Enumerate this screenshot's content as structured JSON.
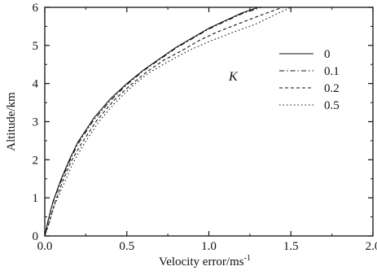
{
  "chart_data": {
    "type": "line",
    "xlabel_main": "Velocity error/ms",
    "xlabel_sup": "-1",
    "ylabel": "Altitude/km",
    "xlim": [
      0,
      2
    ],
    "ylim": [
      0,
      6
    ],
    "xticks": [
      "0.0",
      "0.5",
      "1.0",
      "1.5",
      "2.0"
    ],
    "yticks": [
      "0",
      "1",
      "2",
      "3",
      "4",
      "5",
      "6"
    ],
    "legend_title": "K",
    "legend_placement": "right",
    "grid": false,
    "series": [
      {
        "name": "0",
        "style": "solid",
        "points": [
          [
            0.0,
            0.0
          ],
          [
            0.02,
            0.4
          ],
          [
            0.05,
            0.9
          ],
          [
            0.1,
            1.5
          ],
          [
            0.15,
            2.0
          ],
          [
            0.2,
            2.45
          ],
          [
            0.3,
            3.1
          ],
          [
            0.4,
            3.6
          ],
          [
            0.5,
            4.0
          ],
          [
            0.6,
            4.35
          ],
          [
            0.7,
            4.65
          ],
          [
            0.8,
            4.95
          ],
          [
            0.9,
            5.2
          ],
          [
            1.0,
            5.45
          ],
          [
            1.1,
            5.65
          ],
          [
            1.2,
            5.85
          ],
          [
            1.3,
            6.0
          ]
        ]
      },
      {
        "name": "0.1",
        "style": "dash-dot",
        "points": [
          [
            0.0,
            0.0
          ],
          [
            0.02,
            0.38
          ],
          [
            0.05,
            0.88
          ],
          [
            0.1,
            1.45
          ],
          [
            0.15,
            1.95
          ],
          [
            0.2,
            2.4
          ],
          [
            0.3,
            3.05
          ],
          [
            0.4,
            3.55
          ],
          [
            0.5,
            3.97
          ],
          [
            0.6,
            4.33
          ],
          [
            0.7,
            4.63
          ],
          [
            0.8,
            4.93
          ],
          [
            0.9,
            5.18
          ],
          [
            1.0,
            5.43
          ],
          [
            1.1,
            5.63
          ],
          [
            1.2,
            5.83
          ],
          [
            1.32,
            6.0
          ]
        ]
      },
      {
        "name": "0.2",
        "style": "dashed",
        "points": [
          [
            0.0,
            0.0
          ],
          [
            0.03,
            0.4
          ],
          [
            0.06,
            0.85
          ],
          [
            0.11,
            1.45
          ],
          [
            0.16,
            1.95
          ],
          [
            0.22,
            2.4
          ],
          [
            0.32,
            3.05
          ],
          [
            0.42,
            3.55
          ],
          [
            0.52,
            3.95
          ],
          [
            0.62,
            4.3
          ],
          [
            0.72,
            4.6
          ],
          [
            0.85,
            4.9
          ],
          [
            0.95,
            5.15
          ],
          [
            1.05,
            5.35
          ],
          [
            1.2,
            5.6
          ],
          [
            1.32,
            5.8
          ],
          [
            1.45,
            6.0
          ]
        ]
      },
      {
        "name": "0.5",
        "style": "dotted",
        "points": [
          [
            0.0,
            0.0
          ],
          [
            0.03,
            0.38
          ],
          [
            0.06,
            0.82
          ],
          [
            0.12,
            1.4
          ],
          [
            0.17,
            1.9
          ],
          [
            0.23,
            2.35
          ],
          [
            0.33,
            3.0
          ],
          [
            0.43,
            3.5
          ],
          [
            0.53,
            3.92
          ],
          [
            0.63,
            4.27
          ],
          [
            0.75,
            4.57
          ],
          [
            0.88,
            4.87
          ],
          [
            1.0,
            5.1
          ],
          [
            1.12,
            5.3
          ],
          [
            1.28,
            5.55
          ],
          [
            1.4,
            5.8
          ],
          [
            1.5,
            6.0
          ]
        ]
      }
    ]
  }
}
